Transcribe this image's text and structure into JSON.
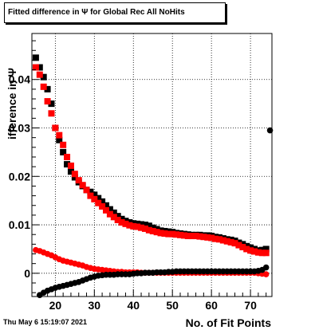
{
  "chart_data": {
    "type": "scatter",
    "title": "Fitted difference in  Ψ  for Global Rec All NoHits",
    "xlabel": "No. of Fit Points",
    "ylabel": "ifference in  Ψ",
    "xlim": [
      14,
      75.5
    ],
    "ylim": [
      -0.0048,
      0.0495
    ],
    "x_ticks": [
      20,
      30,
      40,
      50,
      60,
      70
    ],
    "y_ticks": [
      0,
      0.01,
      0.02,
      0.03,
      0.04
    ],
    "y_tick_labels": [
      "0",
      "0.01",
      "0.02",
      "0.03",
      "0.04"
    ],
    "grid": true,
    "series": [
      {
        "color": "#000000",
        "marker": "square",
        "x": [
          15,
          16,
          17,
          18,
          19,
          20,
          21,
          22,
          23,
          24,
          25,
          26,
          27,
          28,
          29,
          30,
          31,
          32,
          33,
          34,
          35,
          36,
          37,
          38,
          39,
          40,
          41,
          42,
          43,
          44,
          45,
          46,
          47,
          48,
          49,
          50,
          51,
          52,
          53,
          54,
          55,
          56,
          57,
          58,
          59,
          60,
          61,
          62,
          63,
          64,
          65,
          66,
          67,
          68,
          69,
          70,
          71,
          72,
          73,
          74
        ],
        "values": [
          0.0445,
          0.0425,
          0.0405,
          0.038,
          0.035,
          0.03,
          0.0275,
          0.025,
          0.0225,
          0.021,
          0.0198,
          0.0188,
          0.018,
          0.0172,
          0.0168,
          0.0162,
          0.0155,
          0.0148,
          0.014,
          0.0132,
          0.0125,
          0.0118,
          0.0112,
          0.0108,
          0.0105,
          0.0103,
          0.0102,
          0.0101,
          0.01,
          0.0098,
          0.0094,
          0.0091,
          0.0088,
          0.0087,
          0.0086,
          0.0085,
          0.0083,
          0.0082,
          0.0081,
          0.008,
          0.0079,
          0.0079,
          0.0079,
          0.0078,
          0.0078,
          0.0077,
          0.0075,
          0.0074,
          0.0072,
          0.007,
          0.0069,
          0.0067,
          0.0063,
          0.006,
          0.0056,
          0.0053,
          0.005,
          0.0047,
          0.0048,
          0.005
        ]
      },
      {
        "color": "#ff0000",
        "marker": "square",
        "x": [
          15,
          16,
          17,
          18,
          19,
          20,
          21,
          22,
          23,
          24,
          25,
          26,
          27,
          28,
          29,
          30,
          31,
          32,
          33,
          34,
          35,
          36,
          37,
          38,
          39,
          40,
          41,
          42,
          43,
          44,
          45,
          46,
          47,
          48,
          49,
          50,
          51,
          52,
          53,
          54,
          55,
          56,
          57,
          58,
          59,
          60,
          61,
          62,
          63,
          64,
          65,
          66,
          67,
          68,
          69,
          70,
          71,
          72,
          73,
          74
        ],
        "values": [
          0.0425,
          0.041,
          0.0385,
          0.0355,
          0.033,
          0.03,
          0.0285,
          0.0265,
          0.024,
          0.0222,
          0.0205,
          0.0192,
          0.0182,
          0.0172,
          0.016,
          0.0153,
          0.0145,
          0.0138,
          0.013,
          0.0122,
          0.0116,
          0.011,
          0.0105,
          0.0102,
          0.0099,
          0.0097,
          0.0096,
          0.0094,
          0.0092,
          0.0089,
          0.0087,
          0.0085,
          0.0083,
          0.0082,
          0.0081,
          0.0081,
          0.008,
          0.0079,
          0.0078,
          0.0077,
          0.0077,
          0.0077,
          0.0076,
          0.0075,
          0.0074,
          0.0073,
          0.0071,
          0.007,
          0.0068,
          0.0066,
          0.0064,
          0.0062,
          0.0058,
          0.0054,
          0.005,
          0.0047,
          0.0045,
          0.0043,
          0.0042,
          0.0042
        ]
      },
      {
        "color": "#ff0000",
        "marker": "circle",
        "x": [
          15,
          16,
          17,
          18,
          19,
          20,
          21,
          22,
          23,
          24,
          25,
          26,
          27,
          28,
          29,
          30,
          31,
          32,
          33,
          34,
          35,
          36,
          37,
          38,
          39,
          40,
          41,
          42,
          43,
          44,
          45,
          46,
          47,
          48,
          49,
          50,
          51,
          52,
          53,
          54,
          55,
          56,
          57,
          58,
          59,
          60,
          61,
          62,
          63,
          64,
          65,
          66,
          67,
          68,
          69,
          70,
          71,
          72,
          73,
          74
        ],
        "values": [
          0.0048,
          0.0046,
          0.0043,
          0.004,
          0.0037,
          0.0033,
          0.0029,
          0.0026,
          0.0024,
          0.0022,
          0.002,
          0.0018,
          0.0016,
          0.0013,
          0.0011,
          0.0009,
          0.0008,
          0.0007,
          0.0006,
          0.0005,
          0.0004,
          0.0003,
          0.0003,
          0.0002,
          0.0002,
          0.0002,
          0.0002,
          0.0001,
          0.0001,
          0.0001,
          0.0001,
          0.0001,
          0.0001,
          0.0001,
          0.0001,
          0.0001,
          0.0001,
          0.0001,
          0.0001,
          0.0001,
          0.0001,
          0.0001,
          0.0001,
          0.0001,
          0.0001,
          0.0001,
          0.0001,
          0.0001,
          0.0001,
          0.0001,
          0.0001,
          0.0001,
          0.0001,
          0.0001,
          0.0001,
          0.0001,
          0.0001,
          0.0,
          -0.0001,
          -0.0002
        ]
      },
      {
        "color": "#000000",
        "marker": "circle",
        "x": [
          16,
          17,
          18,
          19,
          20,
          21,
          22,
          23,
          24,
          25,
          26,
          27,
          28,
          29,
          30,
          31,
          32,
          33,
          34,
          35,
          36,
          37,
          38,
          39,
          40,
          41,
          42,
          43,
          44,
          45,
          46,
          47,
          48,
          49,
          50,
          51,
          52,
          53,
          54,
          55,
          56,
          57,
          58,
          59,
          60,
          61,
          62,
          63,
          64,
          65,
          66,
          67,
          68,
          69,
          70,
          71,
          72,
          73,
          74
        ],
        "values": [
          -0.0045,
          -0.004,
          -0.0036,
          -0.0033,
          -0.003,
          -0.0028,
          -0.0026,
          -0.0024,
          -0.0022,
          -0.002,
          -0.0018,
          -0.0015,
          -0.0012,
          -0.0009,
          -0.0007,
          -0.0005,
          -0.0004,
          -0.0003,
          -0.0003,
          -0.0003,
          -0.0002,
          -0.0002,
          -0.0002,
          -0.0002,
          -0.0001,
          0.0,
          0.0,
          0.0001,
          0.0001,
          0.0001,
          0.0002,
          0.0002,
          0.0002,
          0.0003,
          0.0003,
          0.0004,
          0.0004,
          0.0004,
          0.0004,
          0.0004,
          0.0004,
          0.0004,
          0.0004,
          0.0004,
          0.0004,
          0.0004,
          0.0004,
          0.0004,
          0.0004,
          0.0004,
          0.0004,
          0.0004,
          0.0004,
          0.0004,
          0.0004,
          0.0004,
          0.0005,
          0.0007,
          0.0012
        ]
      }
    ],
    "outlier": {
      "x": 75,
      "y": 0.0295,
      "color": "#000000",
      "marker": "circle"
    }
  },
  "timestamp": "Thu May  6 15:19:07 2021"
}
